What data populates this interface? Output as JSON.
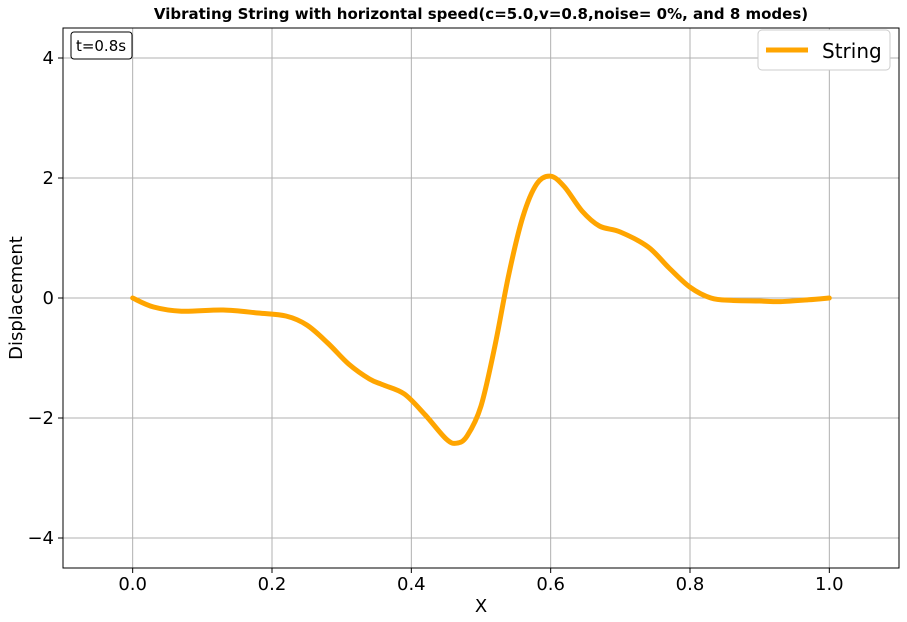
{
  "chart_data": {
    "type": "line",
    "title": "Vibrating String with horizontal speed(c=5.0,v=0.8,noise= 0%, and 8 modes)",
    "xlabel": "X",
    "ylabel": "Displacement",
    "xlim": [
      -0.1,
      1.1
    ],
    "ylim": [
      -4.5,
      4.5
    ],
    "grid": true,
    "legend_position": "top-right",
    "annotation": "t=0.8s",
    "x_ticks": [
      0.0,
      0.2,
      0.4,
      0.6,
      0.8,
      1.0
    ],
    "x_tick_labels": [
      "0.0",
      "0.2",
      "0.4",
      "0.6",
      "0.8",
      "1.0"
    ],
    "y_ticks": [
      4,
      2,
      0,
      -2,
      -4
    ],
    "y_tick_labels": [
      "4",
      "2",
      "0",
      "−2",
      "−4"
    ],
    "series": [
      {
        "name": "String",
        "color": "#ffa500",
        "x": [
          0.0,
          0.03,
          0.07,
          0.13,
          0.18,
          0.22,
          0.25,
          0.28,
          0.31,
          0.34,
          0.36,
          0.39,
          0.42,
          0.45,
          0.465,
          0.48,
          0.5,
          0.52,
          0.54,
          0.56,
          0.58,
          0.6,
          0.62,
          0.645,
          0.67,
          0.7,
          0.74,
          0.77,
          0.8,
          0.83,
          0.86,
          0.9,
          0.93,
          0.97,
          1.0
        ],
        "y": [
          0.0,
          -0.15,
          -0.22,
          -0.2,
          -0.25,
          -0.3,
          -0.45,
          -0.75,
          -1.1,
          -1.35,
          -1.45,
          -1.6,
          -1.95,
          -2.35,
          -2.42,
          -2.3,
          -1.8,
          -0.8,
          0.4,
          1.35,
          1.9,
          2.03,
          1.85,
          1.45,
          1.2,
          1.1,
          0.85,
          0.5,
          0.18,
          0.0,
          -0.04,
          -0.05,
          -0.06,
          -0.03,
          0.0
        ]
      }
    ]
  }
}
